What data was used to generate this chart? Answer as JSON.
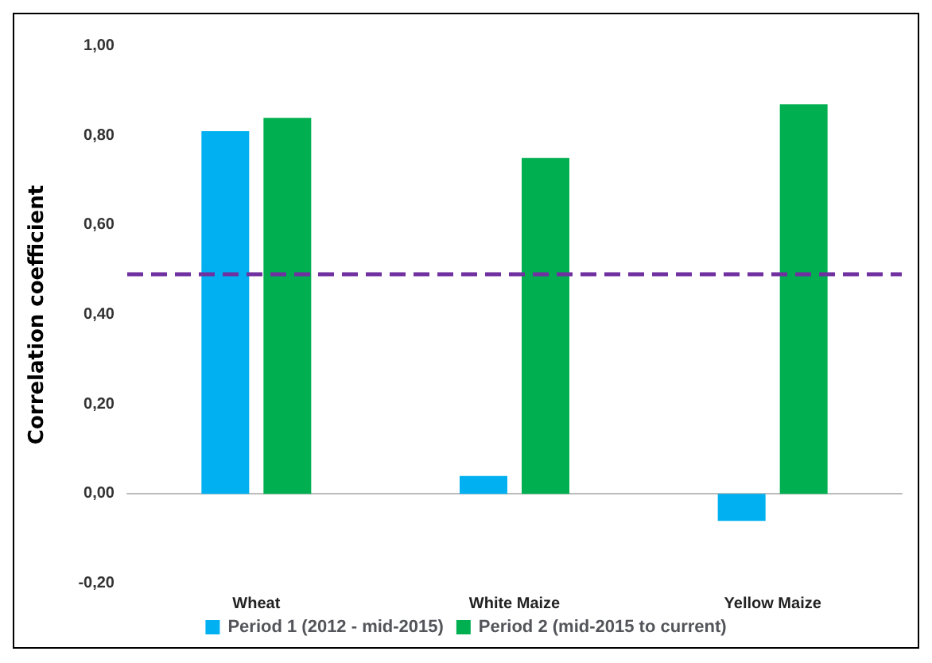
{
  "chart_data": {
    "type": "bar",
    "ylabel": "Correlation coefficient",
    "categories": [
      "Wheat",
      "White Maize",
      "Yellow Maize"
    ],
    "series": [
      {
        "name": "Period 1 (2012 - mid-2015)",
        "color": "#00b0f0",
        "values": [
          0.81,
          0.04,
          -0.06
        ]
      },
      {
        "name": "Period 2 (mid-2015 to current)",
        "color": "#00b050",
        "values": [
          0.84,
          0.75,
          0.87
        ]
      }
    ],
    "ylim": [
      -0.2,
      1.0
    ],
    "yticks": [
      {
        "value": -0.2,
        "label": "-0,20"
      },
      {
        "value": 0,
        "label": "0,00"
      },
      {
        "value": 0.2,
        "label": "0,20"
      },
      {
        "value": 0.4,
        "label": "0,40"
      },
      {
        "value": 0.6,
        "label": "0,60"
      },
      {
        "value": 0.8,
        "label": "0,80"
      },
      {
        "value": 1.0,
        "label": "1,00"
      }
    ],
    "ref_lines": [
      {
        "axis": "y",
        "value": 0.49,
        "color": "#7030a0",
        "line_style": "dashed"
      }
    ],
    "legend": "bottom"
  }
}
